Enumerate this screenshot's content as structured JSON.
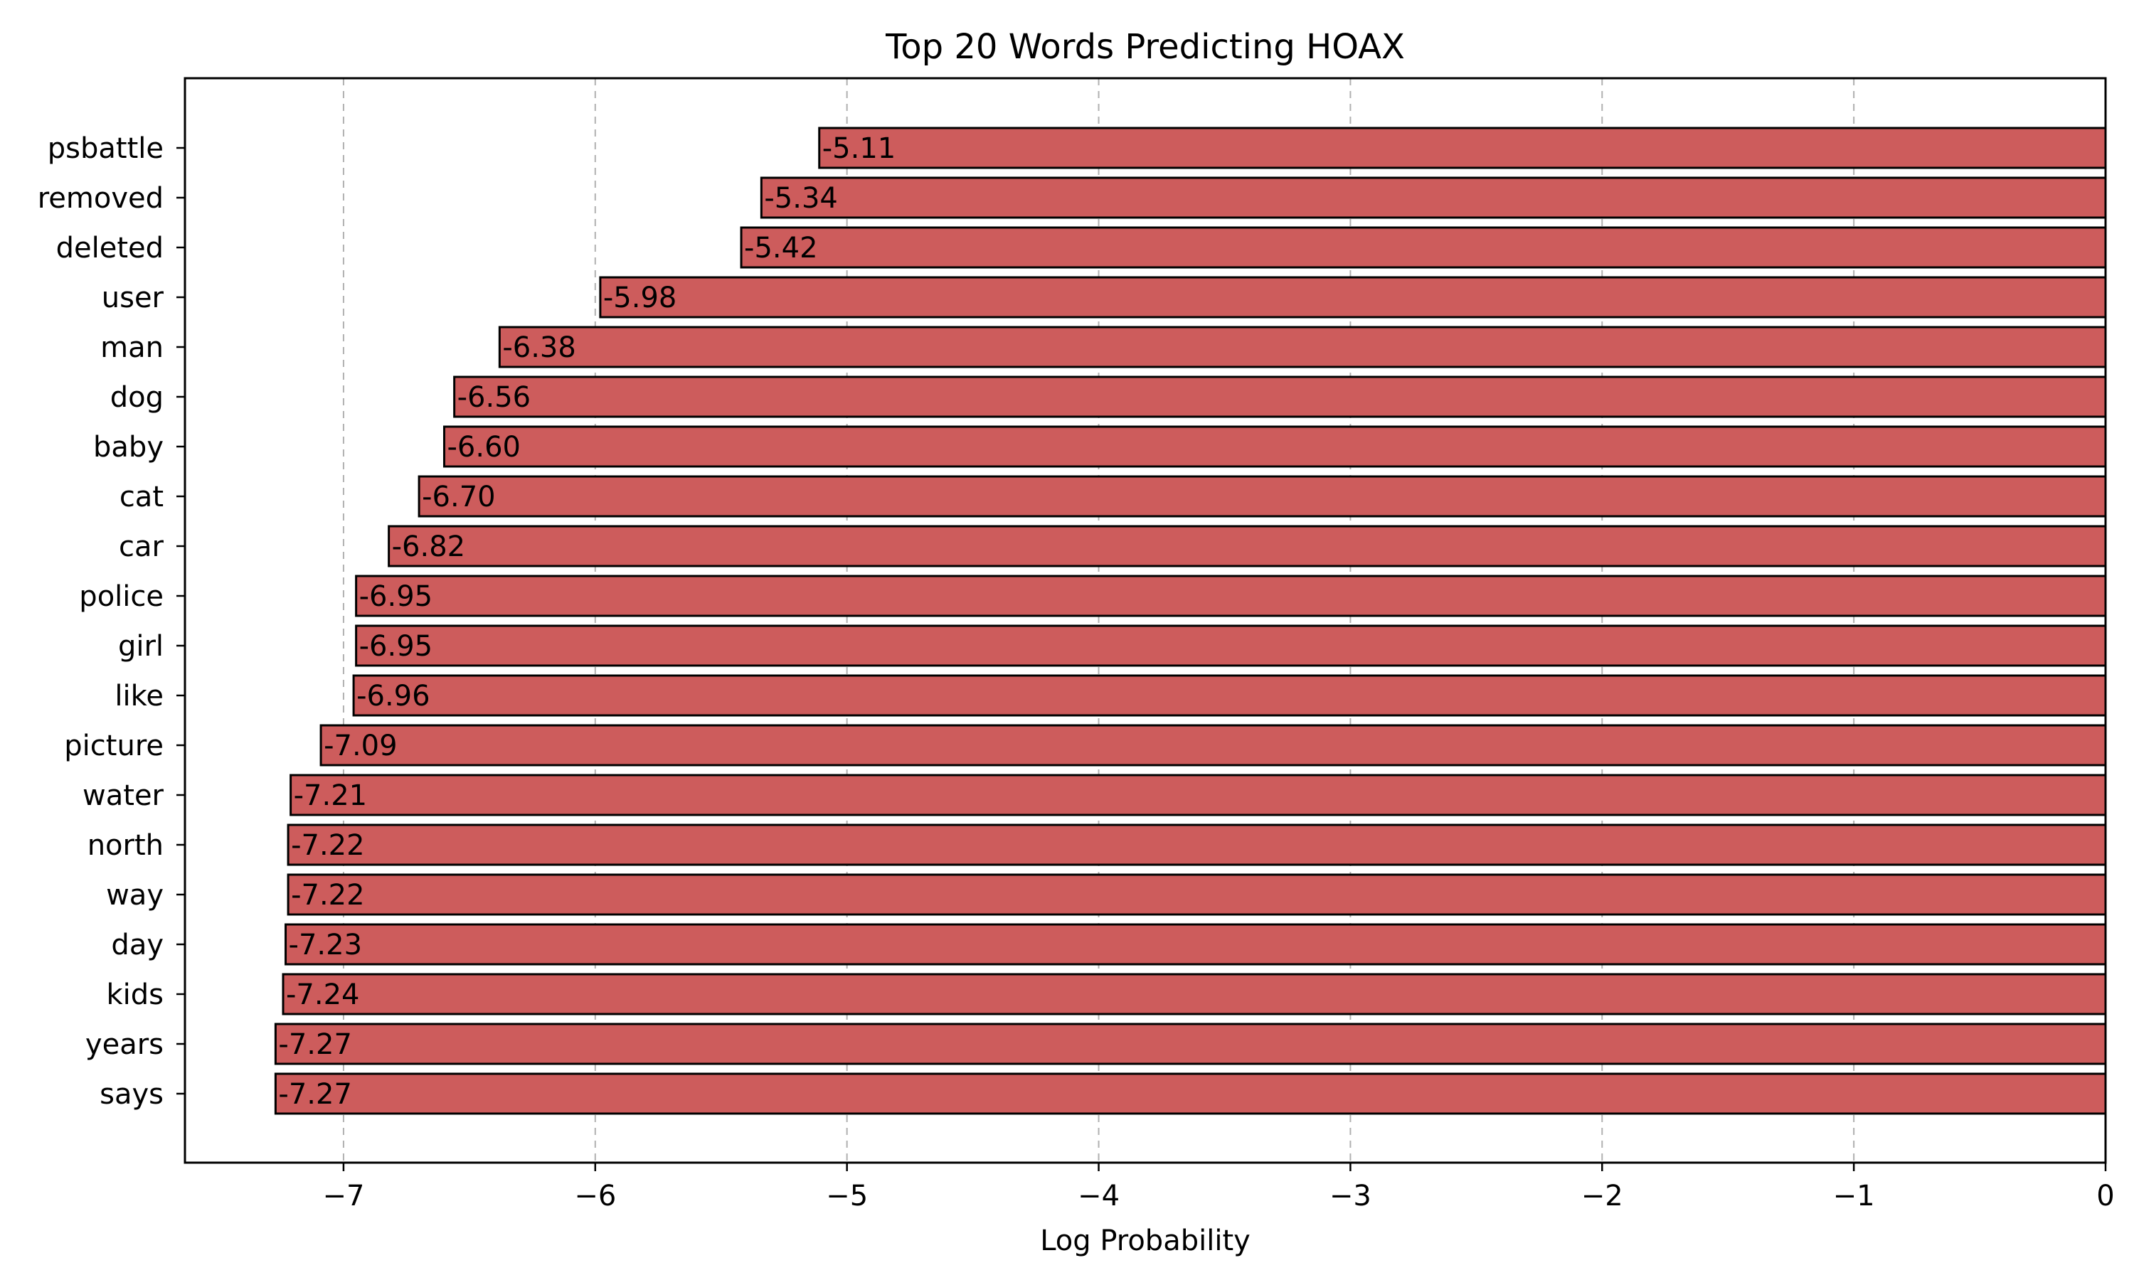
{
  "chart_data": {
    "type": "bar",
    "orientation": "horizontal",
    "title": "Top 20 Words Predicting HOAX",
    "xlabel": "Log Probability",
    "ylabel": "",
    "xlim": [
      -7.63,
      0
    ],
    "xticks": [
      -7,
      -6,
      -5,
      -4,
      -3,
      -2,
      -1,
      0
    ],
    "xtick_labels": [
      "−7",
      "−6",
      "−5",
      "−4",
      "−3",
      "−2",
      "−1",
      "0"
    ],
    "grid": "x-dashed",
    "bar_color": "#cd5c5c",
    "categories": [
      "psbattle",
      "removed",
      "deleted",
      "user",
      "man",
      "dog",
      "baby",
      "cat",
      "car",
      "police",
      "girl",
      "like",
      "picture",
      "water",
      "north",
      "way",
      "day",
      "kids",
      "years",
      "says"
    ],
    "values": [
      -5.11,
      -5.34,
      -5.42,
      -5.98,
      -6.38,
      -6.56,
      -6.6,
      -6.7,
      -6.82,
      -6.95,
      -6.95,
      -6.96,
      -7.09,
      -7.21,
      -7.22,
      -7.22,
      -7.23,
      -7.24,
      -7.27,
      -7.27
    ],
    "value_labels": [
      "-5.11",
      "-5.34",
      "-5.42",
      "-5.98",
      "-6.38",
      "-6.56",
      "-6.60",
      "-6.70",
      "-6.82",
      "-6.95",
      "-6.95",
      "-6.96",
      "-7.09",
      "-7.21",
      "-7.22",
      "-7.22",
      "-7.23",
      "-7.24",
      "-7.27",
      "-7.27"
    ]
  }
}
